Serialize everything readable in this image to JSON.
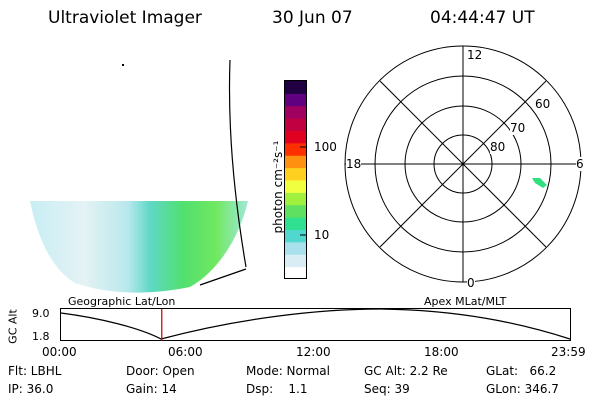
{
  "header": {
    "title": "Ultraviolet Imager",
    "date": "30 Jun 07",
    "time": "04:44:47 UT"
  },
  "colorbar": {
    "unit_label": "photon cm⁻²s⁻¹",
    "ticks": [
      "100",
      "10"
    ],
    "colors": [
      "#ffffff",
      "#d8eef4",
      "#a8e0ec",
      "#50d8d0",
      "#30e090",
      "#60e060",
      "#a0f040",
      "#f0ff40",
      "#ffd020",
      "#ff9010",
      "#ff3000",
      "#e00020",
      "#c00040",
      "#a00060",
      "#600080",
      "#200040"
    ]
  },
  "polar": {
    "mlt_labels": {
      "top": "12",
      "left": "18",
      "right": "6",
      "bottom": "0"
    },
    "lat_labels": [
      "60",
      "70",
      "80"
    ]
  },
  "map": {
    "left_caption": "Geographic Lat/Lon",
    "right_caption": "Apex MLat/MLT"
  },
  "timeline": {
    "ylabel": "GC Alt",
    "ymax": "9.0",
    "ymin": "1.8",
    "ticks": [
      "00:00",
      "06:00",
      "12:00",
      "18:00",
      "23:59"
    ],
    "current_time_fraction": 0.198
  },
  "info": {
    "flt": "Flt: LBHL",
    "ip": "IP: 36.0",
    "door": "Door: Open",
    "gain": "Gain: 14",
    "mode": "Mode: Normal",
    "dsp": "Dsp:    1.1",
    "gc_alt": "GC Alt: 2.2 Re",
    "seq": "Seq: 39",
    "glat": "GLat:   66.2",
    "glon": "GLon: 346.7"
  }
}
